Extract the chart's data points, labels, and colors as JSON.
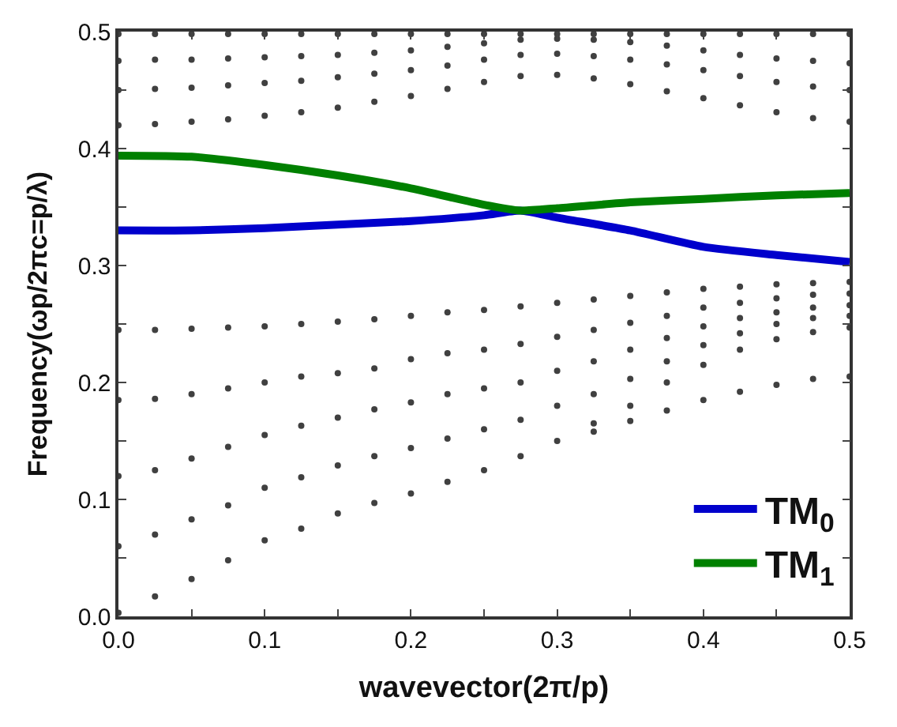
{
  "chart_data": {
    "type": "line",
    "xlabel": "wavevector(2π/p)",
    "ylabel": "Frequency(ωp/2πc=p/λ)",
    "xlim": [
      0,
      0.5
    ],
    "ylim": [
      0,
      0.5
    ],
    "xticks": [
      {
        "value": 0,
        "label": "0.0"
      },
      {
        "value": 0.05,
        "label": null
      },
      0.1,
      {
        "value": 0.15,
        "label": null
      },
      0.2,
      {
        "value": 0.25,
        "label": null
      },
      0.3,
      {
        "value": 0.35,
        "label": null
      },
      0.4,
      {
        "value": 0.45,
        "label": null
      },
      0.5
    ],
    "yticks": [
      {
        "value": 0,
        "label": "0.0"
      },
      {
        "value": 0.05,
        "label": null
      },
      0.1,
      {
        "value": 0.15,
        "label": null
      },
      0.2,
      {
        "value": 0.25,
        "label": null
      },
      0.3,
      {
        "value": 0.35,
        "label": null
      },
      0.4,
      {
        "value": 0.45,
        "label": null
      },
      0.5
    ],
    "legend": "bottom right",
    "line_style": "solid",
    "x": [
      0,
      0.025,
      0.05,
      0.075,
      0.1,
      0.125,
      0.15,
      0.175,
      0.2,
      0.225,
      0.25,
      0.275,
      0.3,
      0.325,
      0.35,
      0.375,
      0.4,
      0.425,
      0.45,
      0.475,
      0.5
    ],
    "series": [
      {
        "type": "scatter",
        "marker": "circle",
        "color": "#404040",
        "values": [
          0.245,
          0.245,
          0.246,
          0.247,
          0.248,
          0.25,
          0.252,
          0.254,
          0.257,
          0.26,
          0.262,
          0.265,
          0.268,
          0.271,
          0.274,
          0.277,
          0.28,
          0.282,
          0.284,
          0.285,
          0.286
        ]
      },
      {
        "type": "scatter",
        "marker": "circle",
        "color": "#404040",
        "values": [
          0.185,
          0.186,
          0.19,
          0.195,
          0.2,
          0.205,
          0.208,
          0.212,
          0.22,
          0.225,
          0.228,
          0.233,
          0.239,
          0.245,
          0.251,
          0.257,
          0.264,
          0.268,
          0.272,
          0.275,
          0.276
        ]
      },
      {
        "type": "scatter",
        "marker": "circle",
        "color": "#404040",
        "values": [
          0.12,
          0.125,
          0.135,
          0.145,
          0.155,
          0.163,
          0.17,
          0.177,
          0.183,
          0.19,
          0.195,
          0.2,
          0.21,
          0.218,
          0.228,
          0.238,
          0.248,
          0.255,
          0.26,
          0.264,
          0.266
        ]
      },
      {
        "type": "scatter",
        "marker": "circle",
        "color": "#404040",
        "values": [
          0.06,
          0.07,
          0.083,
          0.095,
          0.11,
          0.119,
          0.129,
          0.137,
          0.144,
          0.152,
          0.16,
          0.168,
          0.18,
          0.19,
          0.203,
          0.218,
          0.232,
          0.242,
          0.25,
          0.255,
          0.257
        ]
      },
      {
        "type": "scatter",
        "marker": "circle",
        "color": "#404040",
        "values": [
          0.003,
          0.017,
          0.032,
          0.048,
          0.065,
          0.075,
          0.088,
          0.097,
          0.105,
          0.115,
          0.125,
          0.137,
          0.15,
          0.165,
          0.18,
          0.2,
          0.215,
          0.228,
          0.237,
          0.243,
          0.247
        ]
      },
      {
        "type": "scatter",
        "marker": "circle",
        "color": "#404040",
        "values": [
          null,
          null,
          null,
          null,
          null,
          null,
          null,
          null,
          null,
          null,
          null,
          null,
          null,
          0.158,
          0.167,
          0.176,
          0.185,
          0.192,
          0.198,
          0.203,
          0.205
        ]
      },
      {
        "type": "scatter",
        "marker": "circle",
        "color": "#404040",
        "values": [
          0.42,
          0.421,
          0.423,
          0.425,
          0.428,
          0.431,
          0.435,
          0.44,
          0.445,
          0.451,
          0.457,
          0.462,
          0.463,
          0.46,
          0.455,
          0.449,
          0.443,
          0.437,
          0.431,
          0.426,
          0.423
        ]
      },
      {
        "type": "scatter",
        "marker": "circle",
        "color": "#404040",
        "values": [
          0.45,
          0.451,
          0.452,
          0.454,
          0.456,
          0.458,
          0.461,
          0.464,
          0.467,
          0.471,
          0.476,
          0.48,
          0.481,
          0.479,
          0.476,
          0.472,
          0.467,
          0.462,
          0.457,
          0.453,
          0.45
        ]
      },
      {
        "type": "scatter",
        "marker": "circle",
        "color": "#404040",
        "values": [
          0.475,
          0.476,
          0.476,
          0.477,
          0.478,
          0.479,
          0.48,
          0.482,
          0.484,
          0.487,
          0.49,
          0.493,
          0.494,
          0.493,
          0.491,
          0.488,
          0.484,
          0.48,
          0.477,
          0.475,
          0.473
        ]
      },
      {
        "type": "scatter",
        "marker": "circle",
        "color": "#404040",
        "values": [
          0.498,
          0.498,
          0.498,
          0.498,
          0.498,
          0.498,
          0.498,
          0.498,
          0.498,
          0.498,
          0.498,
          0.498,
          0.498,
          0.498,
          0.498,
          0.498,
          0.498,
          0.498,
          0.498,
          0.498,
          0.498
        ]
      },
      {
        "name": "TM$_{0}$",
        "color": "#0000cc",
        "x": [
          0,
          0.05,
          0.1,
          0.15,
          0.2,
          0.25,
          0.275,
          0.3,
          0.35,
          0.4,
          0.45,
          0.5
        ],
        "values": [
          0.33,
          0.33,
          0.332,
          0.335,
          0.338,
          0.343,
          0.347,
          0.341,
          0.33,
          0.316,
          0.309,
          0.303
        ]
      },
      {
        "name": "TM$_{1}$",
        "color": "#008000",
        "x": [
          0,
          0.05,
          0.1,
          0.15,
          0.2,
          0.25,
          0.275,
          0.3,
          0.35,
          0.4,
          0.45,
          0.5
        ],
        "values": [
          0.394,
          0.393,
          0.386,
          0.377,
          0.366,
          0.352,
          0.347,
          0.349,
          0.354,
          0.357,
          0.36,
          0.362
        ]
      }
    ]
  }
}
